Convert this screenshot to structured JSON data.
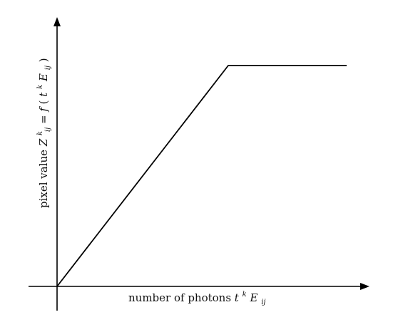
{
  "diagram": {
    "x_axis_label": {
      "prefix": "number of photons ",
      "var1": "t",
      "sup1": "k",
      "var2": "E",
      "sub2": "ij"
    },
    "y_axis_label": {
      "prefix": "pixel value ",
      "var1": "Z",
      "sup1": "k",
      "sub1": "ij",
      "eq": " = ",
      "func": "f",
      "open": "(",
      "var2": "t",
      "sup2": "k",
      "var3": "E",
      "sub3": "ij",
      "close": ")"
    }
  }
}
